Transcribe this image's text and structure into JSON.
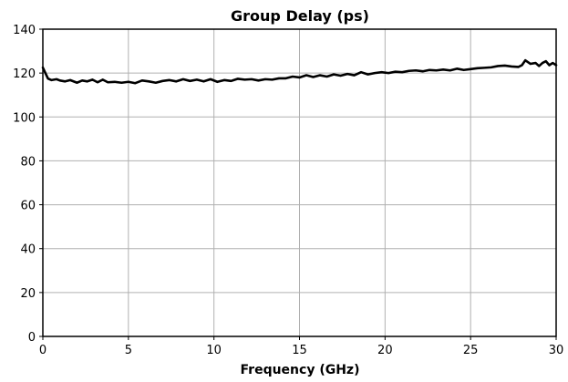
{
  "chart_data": {
    "type": "line",
    "title": "Group Delay (ps)",
    "xlabel": "Frequency (GHz)",
    "ylabel": "",
    "xlim": [
      0,
      30
    ],
    "ylim": [
      0,
      140
    ],
    "xticks": [
      0,
      5,
      10,
      15,
      20,
      25,
      30
    ],
    "yticks": [
      0,
      20,
      40,
      60,
      80,
      100,
      120,
      140
    ],
    "grid": true,
    "colors": {
      "line": "#000000",
      "grid": "#b0b0b0",
      "frame": "#000000"
    },
    "series": [
      {
        "name": "",
        "x": [
          0,
          0.15,
          0.3,
          0.5,
          0.8,
          1.0,
          1.3,
          1.6,
          2.0,
          2.3,
          2.6,
          2.9,
          3.2,
          3.5,
          3.8,
          4.2,
          4.6,
          5.0,
          5.4,
          5.8,
          6.2,
          6.6,
          7.0,
          7.4,
          7.8,
          8.2,
          8.6,
          9.0,
          9.4,
          9.8,
          10.2,
          10.6,
          11.0,
          11.4,
          11.8,
          12.2,
          12.6,
          13.0,
          13.4,
          13.8,
          14.2,
          14.6,
          15.0,
          15.4,
          15.8,
          16.2,
          16.6,
          17.0,
          17.4,
          17.8,
          18.2,
          18.6,
          19.0,
          19.4,
          19.8,
          20.2,
          20.6,
          21.0,
          21.4,
          21.8,
          22.2,
          22.6,
          23.0,
          23.4,
          23.8,
          24.2,
          24.6,
          25.0,
          25.4,
          25.8,
          26.2,
          26.6,
          27.0,
          27.4,
          27.8,
          28.0,
          28.2,
          28.5,
          28.8,
          29.0,
          29.2,
          29.4,
          29.6,
          29.8,
          30.0
        ],
        "values": [
          122.5,
          120,
          117.5,
          116.8,
          117.2,
          116.6,
          116.2,
          116.8,
          115.6,
          116.6,
          116.2,
          117,
          115.8,
          117,
          115.8,
          116,
          115.6,
          116,
          115.4,
          116.6,
          116.2,
          115.6,
          116.4,
          116.8,
          116.2,
          117.2,
          116.4,
          117,
          116.2,
          117.2,
          116,
          116.8,
          116.4,
          117.4,
          117,
          117.2,
          116.6,
          117.2,
          117,
          117.6,
          117.6,
          118.4,
          118,
          119,
          118.2,
          119,
          118.4,
          119.4,
          118.8,
          119.6,
          119,
          120.4,
          119.4,
          120,
          120.4,
          120,
          120.6,
          120.4,
          121,
          121.2,
          120.8,
          121.4,
          121.2,
          121.6,
          121.2,
          122,
          121.4,
          121.8,
          122.2,
          122.4,
          122.6,
          123.2,
          123.4,
          123,
          122.8,
          123.6,
          125.8,
          124.2,
          124.6,
          123.2,
          124.6,
          125.4,
          123.6,
          124.6,
          123.6
        ]
      }
    ]
  }
}
